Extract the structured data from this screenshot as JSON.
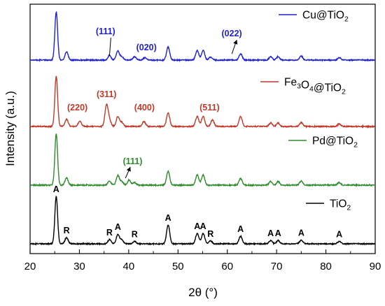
{
  "chart_data": {
    "type": "line",
    "xlabel": "2θ (°)",
    "ylabel": "Intensity (a.u.)",
    "xlim": [
      20,
      90
    ],
    "x_ticks": [
      "20",
      "30",
      "40",
      "50",
      "60",
      "70",
      "80",
      "90"
    ],
    "grid": false,
    "legend_placement": "right of each trace",
    "series": [
      {
        "name": "Cu@TiO2",
        "legend_base": "Cu@TiO",
        "legend_sub": "2",
        "color": "#1f1fd6",
        "peaks": [
          {
            "x": 25.3,
            "h": 1.0
          },
          {
            "x": 27.4,
            "h": 0.17
          },
          {
            "x": 36.1,
            "h": 0.1
          },
          {
            "x": 37.8,
            "h": 0.19
          },
          {
            "x": 38.6,
            "h": 0.07
          },
          {
            "x": 41.2,
            "h": 0.07
          },
          {
            "x": 43.3,
            "h": 0.05
          },
          {
            "x": 48.0,
            "h": 0.27
          },
          {
            "x": 53.9,
            "h": 0.2
          },
          {
            "x": 55.1,
            "h": 0.2
          },
          {
            "x": 56.6,
            "h": 0.06
          },
          {
            "x": 62.7,
            "h": 0.13
          },
          {
            "x": 68.8,
            "h": 0.07
          },
          {
            "x": 70.3,
            "h": 0.07
          },
          {
            "x": 75.0,
            "h": 0.08
          },
          {
            "x": 82.7,
            "h": 0.05
          }
        ]
      },
      {
        "name": "Fe3O4@TiO2",
        "legend_base": "Fe",
        "legend_sub": "3",
        "legend_mid": "O",
        "legend_sub2": "4",
        "legend_tail": "@TiO",
        "legend_sub3": "2",
        "color": "#c0392b",
        "peaks": [
          {
            "x": 25.3,
            "h": 1.0
          },
          {
            "x": 27.4,
            "h": 0.14
          },
          {
            "x": 30.1,
            "h": 0.11
          },
          {
            "x": 35.5,
            "h": 0.42
          },
          {
            "x": 36.1,
            "h": 0.12
          },
          {
            "x": 37.8,
            "h": 0.2
          },
          {
            "x": 38.6,
            "h": 0.08
          },
          {
            "x": 43.1,
            "h": 0.1
          },
          {
            "x": 48.0,
            "h": 0.27
          },
          {
            "x": 53.9,
            "h": 0.2
          },
          {
            "x": 55.1,
            "h": 0.2
          },
          {
            "x": 57.0,
            "h": 0.13
          },
          {
            "x": 62.7,
            "h": 0.2
          },
          {
            "x": 68.8,
            "h": 0.07
          },
          {
            "x": 70.3,
            "h": 0.07
          },
          {
            "x": 75.0,
            "h": 0.08
          },
          {
            "x": 82.7,
            "h": 0.05
          }
        ]
      },
      {
        "name": "Pd@TiO2",
        "legend_base": "Pd@TiO",
        "legend_sub": "2",
        "color": "#2e8b2e",
        "peaks": [
          {
            "x": 25.3,
            "h": 1.0
          },
          {
            "x": 27.4,
            "h": 0.14
          },
          {
            "x": 36.1,
            "h": 0.08
          },
          {
            "x": 37.8,
            "h": 0.19
          },
          {
            "x": 38.6,
            "h": 0.07
          },
          {
            "x": 40.1,
            "h": 0.1
          },
          {
            "x": 41.2,
            "h": 0.05
          },
          {
            "x": 48.0,
            "h": 0.27
          },
          {
            "x": 53.9,
            "h": 0.2
          },
          {
            "x": 55.1,
            "h": 0.2
          },
          {
            "x": 62.7,
            "h": 0.13
          },
          {
            "x": 68.8,
            "h": 0.07
          },
          {
            "x": 70.3,
            "h": 0.07
          },
          {
            "x": 75.0,
            "h": 0.08
          },
          {
            "x": 82.7,
            "h": 0.05
          }
        ]
      },
      {
        "name": "TiO2",
        "legend_base": "TiO",
        "legend_sub": "2",
        "color": "#000000",
        "peaks": [
          {
            "x": 25.3,
            "h": 1.0
          },
          {
            "x": 27.4,
            "h": 0.13
          },
          {
            "x": 36.1,
            "h": 0.09
          },
          {
            "x": 37.8,
            "h": 0.2
          },
          {
            "x": 38.6,
            "h": 0.08
          },
          {
            "x": 41.2,
            "h": 0.05
          },
          {
            "x": 48.0,
            "h": 0.4
          },
          {
            "x": 53.9,
            "h": 0.22
          },
          {
            "x": 55.1,
            "h": 0.22
          },
          {
            "x": 56.6,
            "h": 0.06
          },
          {
            "x": 62.7,
            "h": 0.16
          },
          {
            "x": 68.8,
            "h": 0.07
          },
          {
            "x": 70.3,
            "h": 0.07
          },
          {
            "x": 75.0,
            "h": 0.08
          },
          {
            "x": 82.7,
            "h": 0.05
          }
        ]
      }
    ],
    "annotations": [
      {
        "series": 0,
        "text": "(111)",
        "x": 35.3,
        "color": "#1f1fd6",
        "arrow_to": 36.1
      },
      {
        "series": 0,
        "text": "(020)",
        "x": 43.6,
        "color": "#1f1fd6"
      },
      {
        "series": 0,
        "text": "(022)",
        "x": 60.9,
        "color": "#1f1fd6",
        "arrow_to": 61.5
      },
      {
        "series": 1,
        "text": "(220)",
        "x": 29.6,
        "color": "#c0392b"
      },
      {
        "series": 1,
        "text": "(311)",
        "x": 35.5,
        "color": "#c0392b"
      },
      {
        "series": 1,
        "text": "(400)",
        "x": 43.2,
        "color": "#c0392b"
      },
      {
        "series": 1,
        "text": "(511)",
        "x": 56.4,
        "color": "#c0392b"
      },
      {
        "series": 2,
        "text": "(111)",
        "x": 40.8,
        "color": "#2e8b2e",
        "arrow_to": 39.2
      },
      {
        "series": 3,
        "text": "A",
        "x": 25.3,
        "color": "#000000"
      },
      {
        "series": 3,
        "text": "R",
        "x": 27.4,
        "color": "#000000"
      },
      {
        "series": 3,
        "text": "R",
        "x": 36.1,
        "color": "#000000"
      },
      {
        "series": 3,
        "text": "A",
        "x": 37.8,
        "color": "#000000"
      },
      {
        "series": 3,
        "text": "R",
        "x": 41.2,
        "color": "#000000"
      },
      {
        "series": 3,
        "text": "A",
        "x": 48.0,
        "color": "#000000"
      },
      {
        "series": 3,
        "text": "A",
        "x": 53.9,
        "color": "#000000"
      },
      {
        "series": 3,
        "text": "A",
        "x": 55.1,
        "color": "#000000"
      },
      {
        "series": 3,
        "text": "R",
        "x": 56.6,
        "color": "#000000"
      },
      {
        "series": 3,
        "text": "A",
        "x": 62.7,
        "color": "#000000"
      },
      {
        "series": 3,
        "text": "A",
        "x": 68.8,
        "color": "#000000"
      },
      {
        "series": 3,
        "text": "A",
        "x": 70.3,
        "color": "#000000"
      },
      {
        "series": 3,
        "text": "A",
        "x": 75.0,
        "color": "#000000"
      },
      {
        "series": 3,
        "text": "A",
        "x": 82.7,
        "color": "#000000"
      }
    ]
  }
}
